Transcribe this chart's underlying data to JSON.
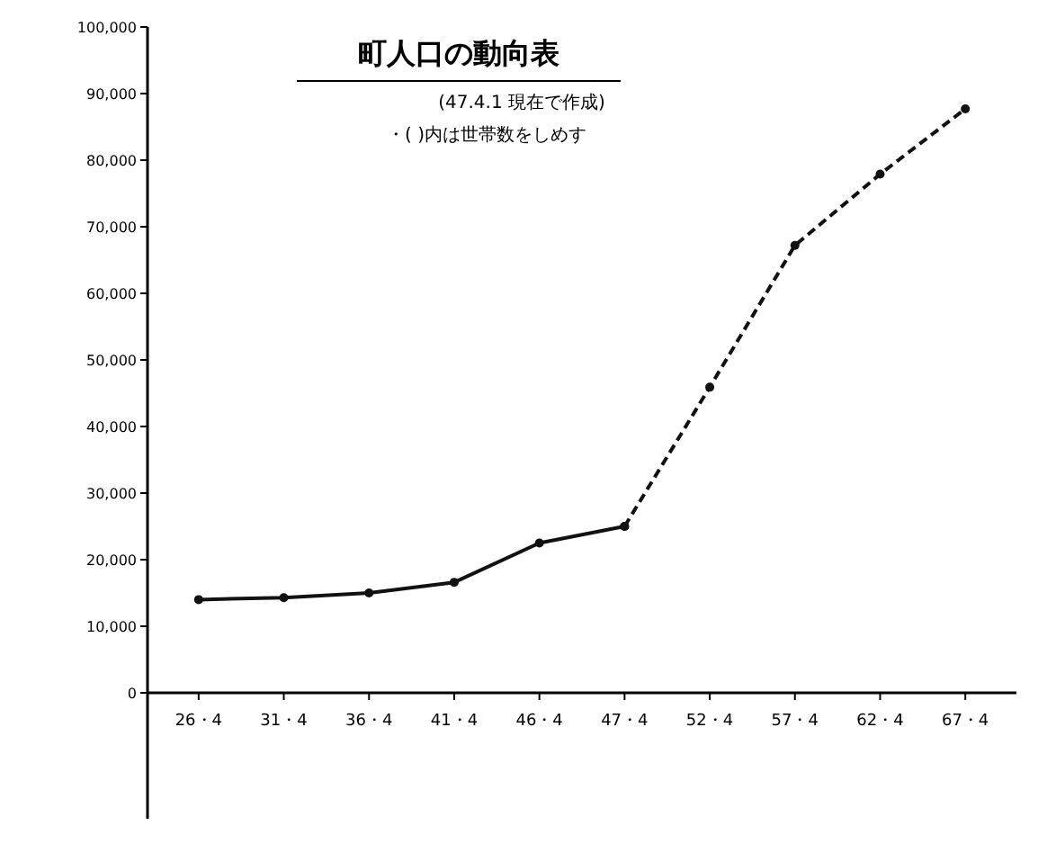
{
  "chart_data": {
    "type": "line",
    "title": "町人口の動向表",
    "subtitle": "(47.4.1 現在で作成)",
    "annotations": [
      "・( )内は世帯数をしめす"
    ],
    "categories": [
      "26・4",
      "31・4",
      "36・4",
      "41・4",
      "46・4",
      "47・4",
      "52・4",
      "57・4",
      "62・4",
      "67・4"
    ],
    "series": [
      {
        "color": "#111111",
        "line_style": "solid",
        "values": [
          14000,
          14300,
          15000,
          16600,
          22500,
          25000,
          null,
          null,
          null,
          null
        ]
      },
      {
        "color": "#111111",
        "line_style": "dashed",
        "values": [
          null,
          null,
          null,
          null,
          null,
          25000,
          45900,
          67200,
          77900,
          87700
        ]
      }
    ],
    "ylim": [
      0,
      100000
    ],
    "yticks": [
      {
        "value": 0,
        "label": "0"
      },
      {
        "value": 10000,
        "label": "10,000"
      },
      {
        "value": 20000,
        "label": "20,000"
      },
      {
        "value": 30000,
        "label": "30,000"
      },
      {
        "value": 40000,
        "label": "40,000"
      },
      {
        "value": 50000,
        "label": "50,000"
      },
      {
        "value": 60000,
        "label": "60,000"
      },
      {
        "value": 70000,
        "label": "70,000"
      },
      {
        "value": 80000,
        "label": "80,000"
      },
      {
        "value": 90000,
        "label": "90,000"
      },
      {
        "value": 100000,
        "label": "100,000"
      }
    ],
    "grid": false,
    "marker": "circle"
  }
}
